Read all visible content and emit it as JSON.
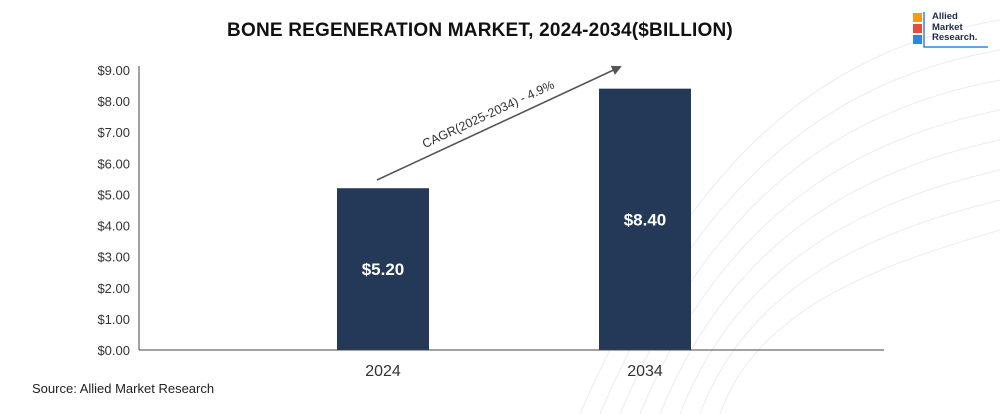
{
  "title": "BONE REGENERATION MARKET, 2024-2034($BILLION)",
  "logo": {
    "lines": [
      "Allied",
      "Market",
      "Research."
    ]
  },
  "source": "Source: Allied Market Research",
  "colors": {
    "bar": "#243858",
    "axis": "#444444",
    "arrow": "#555555",
    "text": "#333333"
  },
  "chart_data": {
    "type": "bar",
    "title": "BONE REGENERATION MARKET, 2024-2034($BILLION)",
    "categories": [
      "2024",
      "2034"
    ],
    "values": [
      5.2,
      8.4
    ],
    "data_labels": [
      "$5.20",
      "$8.40"
    ],
    "ylim": [
      0,
      9
    ],
    "yticks": [
      "$0.00",
      "$1.00",
      "$2.00",
      "$3.00",
      "$4.00",
      "$5.00",
      "$6.00",
      "$7.00",
      "$8.00",
      "$9.00"
    ],
    "xlabel": "",
    "ylabel": "",
    "grid": false,
    "annotation": "CAGR(2025-2034) - 4.9%"
  }
}
